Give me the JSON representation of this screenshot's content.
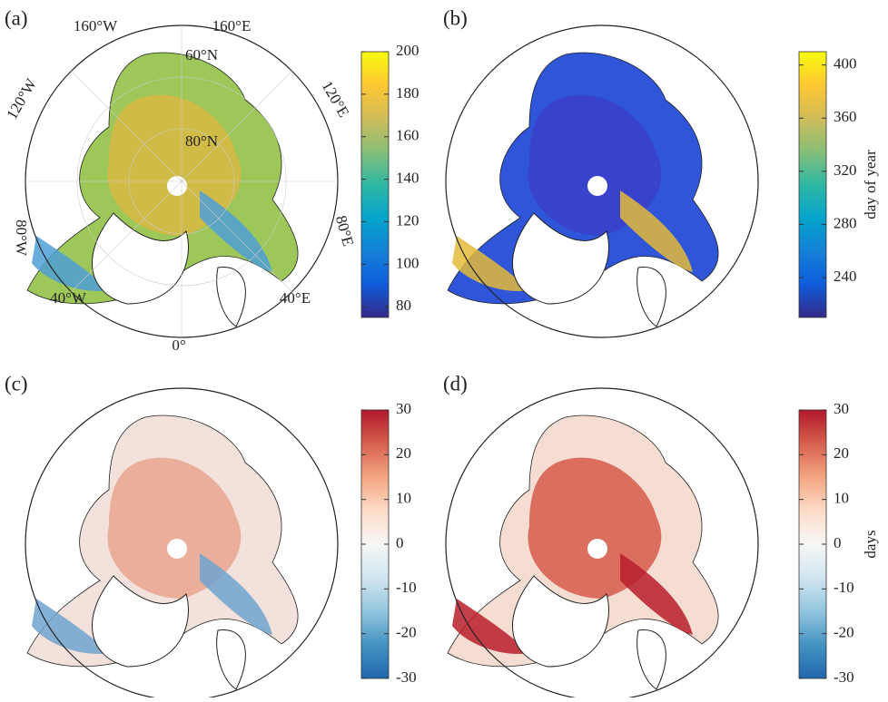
{
  "panels": [
    {
      "label": "(a)",
      "colorbar": {
        "range": [
          75,
          200
        ],
        "ticks": [
          80,
          100,
          120,
          140,
          160,
          180,
          200
        ],
        "colors": [
          "#352a87",
          "#0f5cdd",
          "#1481d6",
          "#06a4ca",
          "#2eb7a4",
          "#87bf77",
          "#d1bb59",
          "#fec832",
          "#f9fb0e"
        ]
      },
      "graticule_labels": [
        "160°W",
        "160°E",
        "60°N",
        "120°W",
        "120°E",
        "80°N",
        "80°W",
        "80°E",
        "40°W",
        "40°E",
        "0°"
      ]
    },
    {
      "label": "(b)",
      "colorbar": {
        "range": [
          210,
          410
        ],
        "ticks": [
          240,
          280,
          320,
          360,
          400
        ],
        "label": "day of year",
        "colors": [
          "#352a87",
          "#0f5cdd",
          "#1481d6",
          "#06a4ca",
          "#2eb7a4",
          "#87bf77",
          "#d1bb59",
          "#fec832",
          "#f9fb0e"
        ]
      }
    },
    {
      "label": "(c)",
      "colorbar": {
        "range": [
          -30,
          30
        ],
        "ticks": [
          -30,
          -20,
          -10,
          0,
          10,
          20,
          30
        ],
        "colors": [
          "#2166ac",
          "#4393c3",
          "#92c5de",
          "#d1e5f0",
          "#f7f7f7",
          "#fddbc7",
          "#f4a582",
          "#d6604d",
          "#b2182b"
        ]
      }
    },
    {
      "label": "(d)",
      "colorbar": {
        "range": [
          -30,
          30
        ],
        "ticks": [
          -30,
          -20,
          -10,
          0,
          10,
          20,
          30
        ],
        "label": "days",
        "colors": [
          "#2166ac",
          "#4393c3",
          "#92c5de",
          "#d1e5f0",
          "#f7f7f7",
          "#fddbc7",
          "#f4a582",
          "#d6604d",
          "#b2182b"
        ]
      }
    }
  ]
}
